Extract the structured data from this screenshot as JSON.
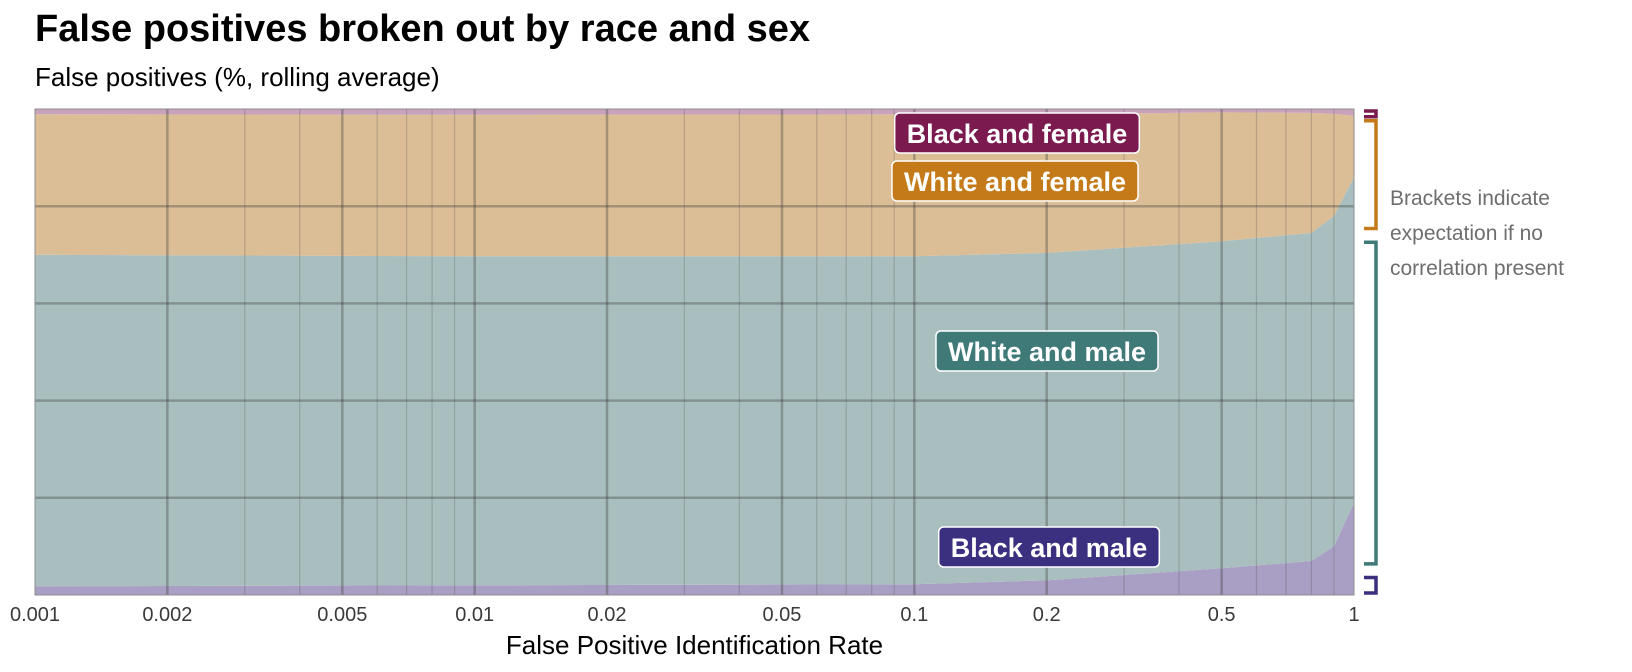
{
  "title": "False positives broken out by race and sex",
  "subtitle": "False positives (%, rolling average)",
  "chart_data": {
    "type": "area",
    "stacked": "100%",
    "xscale": "log",
    "xlabel": "False Positive Identification Rate",
    "xlim": [
      0.001,
      1
    ],
    "ylim": [
      0,
      100
    ],
    "x_ticks": [
      0.001,
      0.002,
      0.005,
      0.01,
      0.02,
      0.05,
      0.1,
      0.2,
      0.5,
      1
    ],
    "x_tick_labels": [
      "0.001",
      "0.002",
      "0.005",
      "0.01",
      "0.02",
      "0.05",
      "0.1",
      "0.2",
      "0.5",
      "1"
    ],
    "x": [
      0.001,
      0.01,
      0.1,
      0.2,
      0.5,
      0.8,
      0.9,
      1
    ],
    "series": [
      {
        "name": "Black and male",
        "color": "#3b2f80",
        "fill": "#a99ec3",
        "values": [
          1.8,
          2.0,
          2.2,
          3.0,
          5.5,
          7.0,
          10.0,
          19.0
        ]
      },
      {
        "name": "White and male",
        "color": "#3f7a78",
        "fill": "#a9bfbf",
        "values": [
          68.2,
          67.7,
          67.5,
          67.4,
          67.3,
          67.5,
          68.0,
          67.0
        ]
      },
      {
        "name": "White and female",
        "color": "#c47a18",
        "fill": "#dbbd96",
        "values": [
          28.9,
          29.1,
          29.2,
          28.5,
          26.5,
          24.7,
          21.0,
          12.6
        ]
      },
      {
        "name": "Black and female",
        "color": "#7a1a4e",
        "fill": "#c9a3bb",
        "values": [
          1.1,
          1.2,
          1.1,
          1.1,
          0.7,
          0.8,
          1.0,
          1.4
        ]
      }
    ],
    "brackets": [
      {
        "series": "Black and female",
        "color": "#7a1a4e",
        "range": [
          98,
          100
        ]
      },
      {
        "series": "White and female",
        "color": "#c47a18",
        "range": [
          75,
          98
        ]
      },
      {
        "series": "White and male",
        "color": "#3f7a78",
        "range": [
          6,
          73
        ]
      },
      {
        "series": "Black and male",
        "color": "#3b2f80",
        "range": [
          0,
          4
        ]
      }
    ],
    "annotation": "Brackets indicate expectation if no correlation present",
    "annotation_lines": [
      "Brackets indicate",
      "expectation if no",
      "correlation present"
    ],
    "grid": true
  }
}
